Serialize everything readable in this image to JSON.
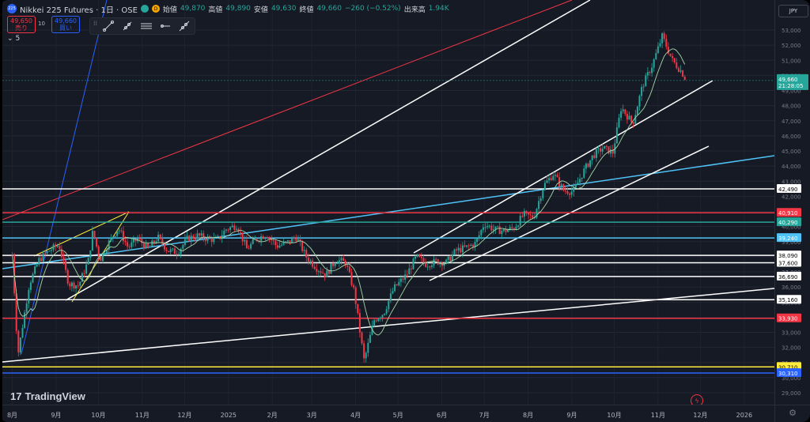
{
  "symbol": {
    "logo": "225",
    "title": "Nikkei 225 Futures · 1日 · OSE",
    "status_icons": [
      "market-open-icon",
      "delayed-data-icon"
    ],
    "status_letters": [
      "",
      "D"
    ],
    "ohlc": [
      {
        "label": "始値",
        "value": "49,870"
      },
      {
        "label": "高値",
        "value": "49,890"
      },
      {
        "label": "安値",
        "value": "49,630"
      },
      {
        "label": "終値",
        "value": "49,660"
      }
    ],
    "change": "−260 (−0.52%)",
    "volume_label": "出来高",
    "volume": "1.94K"
  },
  "trade": {
    "sell_price": "49,650",
    "sell_label": "売り",
    "spread": "10",
    "buy_price": "49,660",
    "buy_label": "買い"
  },
  "indicators": {
    "count": "5"
  },
  "toolbar": {
    "icons": [
      "drag-grip-icon",
      "trend-line-icon",
      "ray-icon",
      "parallel-channel-icon",
      "horizontal-ray-icon",
      "extended-line-icon"
    ]
  },
  "currency": "JPY",
  "brand": "TradingView",
  "colors": {
    "background": "#161a25",
    "up": "#26a69a",
    "down": "#f23645",
    "white_line": "#ffffff",
    "red_line": "#f23645",
    "green_line": "#26a69a",
    "cyan_line": "#4fc3f7",
    "yellow_line": "#ffeb3b",
    "blue_line": "#2962ff",
    "ma": "#a5d6a7"
  },
  "chart_data": {
    "type": "candlestick",
    "ylim": [
      28500,
      54500
    ],
    "y_ticks": [
      "53,000",
      "52,000",
      "51,000",
      "50,000",
      "49,000",
      "48,000",
      "47,000",
      "46,000",
      "45,000",
      "44,000",
      "43,000",
      "42,000",
      "41,000",
      "40,000",
      "39,000",
      "38,000",
      "37,000",
      "36,000",
      "35,000",
      "34,000",
      "33,000",
      "32,000",
      "31,000",
      "30,000",
      "29,000"
    ],
    "x_ticks": [
      "8月",
      "9月",
      "10月",
      "11月",
      "12月",
      "2025",
      "2月",
      "3月",
      "4月",
      "5月",
      "6月",
      "7月",
      "8月",
      "9月",
      "10月",
      "11月",
      "12月",
      "2026"
    ],
    "last_price": {
      "value": "49,660",
      "countdown": "21:28:05"
    },
    "horizontal_levels": [
      {
        "value": 42490,
        "label": "42,490",
        "color": "white"
      },
      {
        "value": 40910,
        "label": "40,910",
        "color": "red"
      },
      {
        "value": 40290,
        "label": "40,290",
        "color": "green"
      },
      {
        "value": 39240,
        "label": "39,240",
        "color": "cyan"
      },
      {
        "value": 38090,
        "label": "38,090",
        "color": "white"
      },
      {
        "value": 37600,
        "label": "37,600",
        "color": "white"
      },
      {
        "value": 36690,
        "label": "36,690",
        "color": "white"
      },
      {
        "value": 35160,
        "label": "35,160",
        "color": "white"
      },
      {
        "value": 33930,
        "label": "33,930",
        "color": "red"
      },
      {
        "value": 30710,
        "label": "30,710",
        "color": "yellow"
      },
      {
        "value": 30310,
        "label": "30,310",
        "color": "blue"
      }
    ],
    "close_path": [
      [
        "2024-08-01",
        38100
      ],
      [
        "2024-08-05",
        31500
      ],
      [
        "2024-08-13",
        36200
      ],
      [
        "2024-08-20",
        37800
      ],
      [
        "2024-08-27",
        38400
      ],
      [
        "2024-09-03",
        38800
      ],
      [
        "2024-09-10",
        36200
      ],
      [
        "2024-09-17",
        36100
      ],
      [
        "2024-09-24",
        37800
      ],
      [
        "2024-09-27",
        39700
      ],
      [
        "2024-10-02",
        37800
      ],
      [
        "2024-10-08",
        38900
      ],
      [
        "2024-10-15",
        39900
      ],
      [
        "2024-10-22",
        38600
      ],
      [
        "2024-10-29",
        39200
      ],
      [
        "2024-11-05",
        38500
      ],
      [
        "2024-11-12",
        39300
      ],
      [
        "2024-11-19",
        38400
      ],
      [
        "2024-11-26",
        38300
      ],
      [
        "2024-12-03",
        39200
      ],
      [
        "2024-12-10",
        39400
      ],
      [
        "2024-12-17",
        39200
      ],
      [
        "2024-12-24",
        39100
      ],
      [
        "2024-12-30",
        39800
      ],
      [
        "2025-01-07",
        40100
      ],
      [
        "2025-01-14",
        38500
      ],
      [
        "2025-01-21",
        39200
      ],
      [
        "2025-01-28",
        39500
      ],
      [
        "2025-02-04",
        38700
      ],
      [
        "2025-02-11",
        38900
      ],
      [
        "2025-02-18",
        39300
      ],
      [
        "2025-02-25",
        38000
      ],
      [
        "2025-03-04",
        37300
      ],
      [
        "2025-03-11",
        36800
      ],
      [
        "2025-03-18",
        37800
      ],
      [
        "2025-03-25",
        37600
      ],
      [
        "2025-03-31",
        35700
      ],
      [
        "2025-04-07",
        31100
      ],
      [
        "2025-04-14",
        33800
      ],
      [
        "2025-04-21",
        34300
      ],
      [
        "2025-04-28",
        35900
      ],
      [
        "2025-05-07",
        36800
      ],
      [
        "2025-05-14",
        38000
      ],
      [
        "2025-05-21",
        37500
      ],
      [
        "2025-05-28",
        37700
      ],
      [
        "2025-06-04",
        37600
      ],
      [
        "2025-06-11",
        38400
      ],
      [
        "2025-06-18",
        38600
      ],
      [
        "2025-06-25",
        38900
      ],
      [
        "2025-07-01",
        40200
      ],
      [
        "2025-07-08",
        39800
      ],
      [
        "2025-07-15",
        39700
      ],
      [
        "2025-07-22",
        39900
      ],
      [
        "2025-07-29",
        40800
      ],
      [
        "2025-08-05",
        40600
      ],
      [
        "2025-08-12",
        42700
      ],
      [
        "2025-08-19",
        43500
      ],
      [
        "2025-08-26",
        42400
      ],
      [
        "2025-09-02",
        42300
      ],
      [
        "2025-09-09",
        43600
      ],
      [
        "2025-09-16",
        44700
      ],
      [
        "2025-09-23",
        45200
      ],
      [
        "2025-09-30",
        44900
      ],
      [
        "2025-10-06",
        47900
      ],
      [
        "2025-10-14",
        46800
      ],
      [
        "2025-10-21",
        49300
      ],
      [
        "2025-10-28",
        50700
      ],
      [
        "2025-11-04",
        52600
      ],
      [
        "2025-11-11",
        51000
      ],
      [
        "2025-11-18",
        50200
      ],
      [
        "2025-11-21",
        49660
      ]
    ]
  }
}
